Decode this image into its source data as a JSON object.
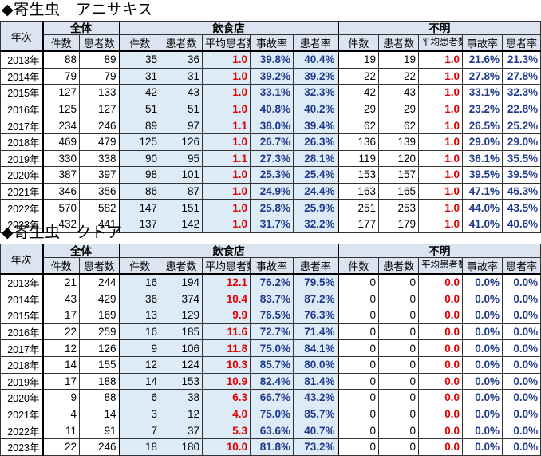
{
  "sections": [
    {
      "title": "◆寄生虫　アニサキス",
      "header": {
        "year": "年次",
        "groups": {
          "total": "全体",
          "restaurant": "飲食店",
          "unknown": "不明"
        },
        "cols": {
          "cases": "件数",
          "patients": "患者数",
          "avg": "平均患者数",
          "avg_unknown": "平均患者数",
          "accident_rate": "事故率",
          "patient_rate": "患者率"
        }
      },
      "rows": [
        {
          "year": "2013年",
          "t_cases": "88",
          "t_pat": "89",
          "r_cases": "35",
          "r_pat": "36",
          "r_avg": "1.0",
          "r_acc": "39.8%",
          "r_prate": "40.4%",
          "u_cases": "19",
          "u_pat": "19",
          "u_avg": "1.0",
          "u_acc": "21.6%",
          "u_prate": "21.3%"
        },
        {
          "year": "2014年",
          "t_cases": "79",
          "t_pat": "79",
          "r_cases": "31",
          "r_pat": "31",
          "r_avg": "1.0",
          "r_acc": "39.2%",
          "r_prate": "39.2%",
          "u_cases": "22",
          "u_pat": "22",
          "u_avg": "1.0",
          "u_acc": "27.8%",
          "u_prate": "27.8%"
        },
        {
          "year": "2015年",
          "t_cases": "127",
          "t_pat": "133",
          "r_cases": "42",
          "r_pat": "43",
          "r_avg": "1.0",
          "r_acc": "33.1%",
          "r_prate": "32.3%",
          "u_cases": "42",
          "u_pat": "43",
          "u_avg": "1.0",
          "u_acc": "33.1%",
          "u_prate": "32.3%"
        },
        {
          "year": "2016年",
          "t_cases": "125",
          "t_pat": "127",
          "r_cases": "51",
          "r_pat": "51",
          "r_avg": "1.0",
          "r_acc": "40.8%",
          "r_prate": "40.2%",
          "u_cases": "29",
          "u_pat": "29",
          "u_avg": "1.0",
          "u_acc": "23.2%",
          "u_prate": "22.8%"
        },
        {
          "year": "2017年",
          "t_cases": "234",
          "t_pat": "246",
          "r_cases": "89",
          "r_pat": "97",
          "r_avg": "1.1",
          "r_acc": "38.0%",
          "r_prate": "39.4%",
          "u_cases": "62",
          "u_pat": "62",
          "u_avg": "1.0",
          "u_acc": "26.5%",
          "u_prate": "25.2%"
        },
        {
          "year": "2018年",
          "t_cases": "469",
          "t_pat": "479",
          "r_cases": "125",
          "r_pat": "126",
          "r_avg": "1.0",
          "r_acc": "26.7%",
          "r_prate": "26.3%",
          "u_cases": "136",
          "u_pat": "139",
          "u_avg": "1.0",
          "u_acc": "29.0%",
          "u_prate": "29.0%"
        },
        {
          "year": "2019年",
          "t_cases": "330",
          "t_pat": "338",
          "r_cases": "90",
          "r_pat": "95",
          "r_avg": "1.1",
          "r_acc": "27.3%",
          "r_prate": "28.1%",
          "u_cases": "119",
          "u_pat": "120",
          "u_avg": "1.0",
          "u_acc": "36.1%",
          "u_prate": "35.5%"
        },
        {
          "year": "2020年",
          "t_cases": "387",
          "t_pat": "397",
          "r_cases": "98",
          "r_pat": "101",
          "r_avg": "1.0",
          "r_acc": "25.3%",
          "r_prate": "25.4%",
          "u_cases": "153",
          "u_pat": "157",
          "u_avg": "1.0",
          "u_acc": "39.5%",
          "u_prate": "39.5%"
        },
        {
          "year": "2021年",
          "t_cases": "346",
          "t_pat": "356",
          "r_cases": "86",
          "r_pat": "87",
          "r_avg": "1.0",
          "r_acc": "24.9%",
          "r_prate": "24.4%",
          "u_cases": "163",
          "u_pat": "165",
          "u_avg": "1.0",
          "u_acc": "47.1%",
          "u_prate": "46.3%"
        },
        {
          "year": "2022年",
          "t_cases": "570",
          "t_pat": "582",
          "r_cases": "147",
          "r_pat": "151",
          "r_avg": "1.0",
          "r_acc": "25.8%",
          "r_prate": "25.9%",
          "u_cases": "251",
          "u_pat": "253",
          "u_avg": "1.0",
          "u_acc": "44.0%",
          "u_prate": "43.5%"
        },
        {
          "year": "2023年",
          "t_cases": "432",
          "t_pat": "441",
          "r_cases": "137",
          "r_pat": "142",
          "r_avg": "1.0",
          "r_acc": "31.7%",
          "r_prate": "32.2%",
          "u_cases": "177",
          "u_pat": "179",
          "u_avg": "1.0",
          "u_acc": "41.0%",
          "u_prate": "40.6%"
        }
      ]
    },
    {
      "title": "◆寄生虫　クドア",
      "header": {
        "year": "年次",
        "groups": {
          "total": "全体",
          "restaurant": "飲食店",
          "unknown": "不明"
        },
        "cols": {
          "cases": "件数",
          "patients": "患者数",
          "avg": "平均患者数",
          "avg_unknown": "平均患者数",
          "accident_rate": "事故率",
          "patient_rate": "患者率"
        }
      },
      "rows": [
        {
          "year": "2013年",
          "t_cases": "21",
          "t_pat": "244",
          "r_cases": "16",
          "r_pat": "194",
          "r_avg": "12.1",
          "r_acc": "76.2%",
          "r_prate": "79.5%",
          "u_cases": "0",
          "u_pat": "0",
          "u_avg": "0.0",
          "u_acc": "0.0%",
          "u_prate": "0.0%"
        },
        {
          "year": "2014年",
          "t_cases": "43",
          "t_pat": "429",
          "r_cases": "36",
          "r_pat": "374",
          "r_avg": "10.4",
          "r_acc": "83.7%",
          "r_prate": "87.2%",
          "u_cases": "0",
          "u_pat": "0",
          "u_avg": "0.0",
          "u_acc": "0.0%",
          "u_prate": "0.0%"
        },
        {
          "year": "2015年",
          "t_cases": "17",
          "t_pat": "169",
          "r_cases": "13",
          "r_pat": "129",
          "r_avg": "9.9",
          "r_acc": "76.5%",
          "r_prate": "76.3%",
          "u_cases": "0",
          "u_pat": "0",
          "u_avg": "0.0",
          "u_acc": "0.0%",
          "u_prate": "0.0%"
        },
        {
          "year": "2016年",
          "t_cases": "22",
          "t_pat": "259",
          "r_cases": "16",
          "r_pat": "185",
          "r_avg": "11.6",
          "r_acc": "72.7%",
          "r_prate": "71.4%",
          "u_cases": "0",
          "u_pat": "0",
          "u_avg": "0.0",
          "u_acc": "0.0%",
          "u_prate": "0.0%"
        },
        {
          "year": "2017年",
          "t_cases": "12",
          "t_pat": "126",
          "r_cases": "9",
          "r_pat": "106",
          "r_avg": "11.8",
          "r_acc": "75.0%",
          "r_prate": "84.1%",
          "u_cases": "0",
          "u_pat": "0",
          "u_avg": "0.0",
          "u_acc": "0.0%",
          "u_prate": "0.0%"
        },
        {
          "year": "2018年",
          "t_cases": "14",
          "t_pat": "155",
          "r_cases": "12",
          "r_pat": "124",
          "r_avg": "10.3",
          "r_acc": "85.7%",
          "r_prate": "80.0%",
          "u_cases": "0",
          "u_pat": "0",
          "u_avg": "0.0",
          "u_acc": "0.0%",
          "u_prate": "0.0%"
        },
        {
          "year": "2019年",
          "t_cases": "17",
          "t_pat": "188",
          "r_cases": "14",
          "r_pat": "153",
          "r_avg": "10.9",
          "r_acc": "82.4%",
          "r_prate": "81.4%",
          "u_cases": "0",
          "u_pat": "0",
          "u_avg": "0.0",
          "u_acc": "0.0%",
          "u_prate": "0.0%"
        },
        {
          "year": "2020年",
          "t_cases": "9",
          "t_pat": "88",
          "r_cases": "6",
          "r_pat": "38",
          "r_avg": "6.3",
          "r_acc": "66.7%",
          "r_prate": "43.2%",
          "u_cases": "0",
          "u_pat": "0",
          "u_avg": "0.0",
          "u_acc": "0.0%",
          "u_prate": "0.0%"
        },
        {
          "year": "2021年",
          "t_cases": "4",
          "t_pat": "14",
          "r_cases": "3",
          "r_pat": "12",
          "r_avg": "4.0",
          "r_acc": "75.0%",
          "r_prate": "85.7%",
          "u_cases": "0",
          "u_pat": "0",
          "u_avg": "0.0",
          "u_acc": "0.0%",
          "u_prate": "0.0%"
        },
        {
          "year": "2022年",
          "t_cases": "11",
          "t_pat": "91",
          "r_cases": "7",
          "r_pat": "37",
          "r_avg": "5.3",
          "r_acc": "63.6%",
          "r_prate": "40.7%",
          "u_cases": "0",
          "u_pat": "0",
          "u_avg": "0.0",
          "u_acc": "0.0%",
          "u_prate": "0.0%"
        },
        {
          "year": "2023年",
          "t_cases": "22",
          "t_pat": "246",
          "r_cases": "18",
          "r_pat": "180",
          "r_avg": "10.0",
          "r_acc": "81.8%",
          "r_prate": "73.2%",
          "u_cases": "0",
          "u_pat": "0",
          "u_avg": "0.0",
          "u_acc": "0.0%",
          "u_prate": "0.0%"
        }
      ]
    }
  ],
  "colors": {
    "header_bg": "#dbe4f0",
    "restaurant_bg": "#ddebf7",
    "avg_text": "#e00000",
    "rate_text": "#1f3a8a"
  }
}
